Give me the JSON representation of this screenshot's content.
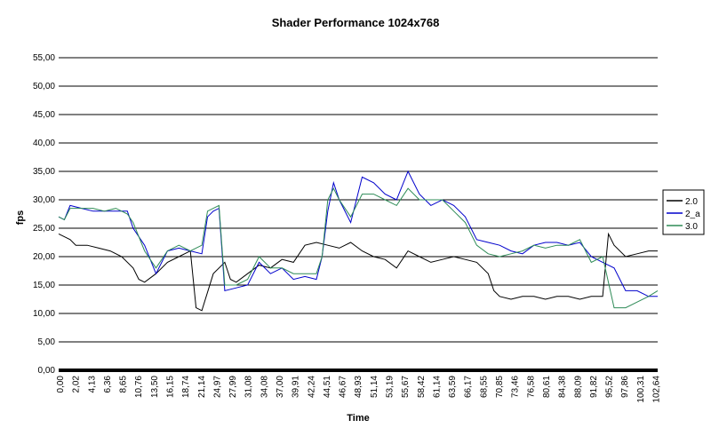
{
  "chart_data": {
    "type": "line",
    "title": "Shader Performance 1024x768",
    "xlabel": "Time",
    "ylabel": "fps",
    "ylim": [
      0,
      55
    ],
    "y_ticks": [
      "0,00",
      "5,00",
      "10,00",
      "15,00",
      "20,00",
      "25,00",
      "30,00",
      "35,00",
      "40,00",
      "45,00",
      "50,00",
      "55,00"
    ],
    "x_range": [
      0,
      104.6
    ],
    "x_tick_labels": [
      "0,00",
      "2,02",
      "4,13",
      "6,36",
      "8,65",
      "10,76",
      "13,50",
      "16,15",
      "18,74",
      "21,14",
      "24,97",
      "27,99",
      "31,08",
      "34,08",
      "37,00",
      "39,91",
      "42,24",
      "44,51",
      "46,67",
      "48,93",
      "51,14",
      "53,19",
      "55,67",
      "58,42",
      "61,14",
      "63,59",
      "66,17",
      "68,55",
      "70,85",
      "73,46",
      "76,58",
      "80,61",
      "84,38",
      "88,09",
      "91,82",
      "95,52",
      "97,86",
      "100,31",
      "102,64"
    ],
    "grid": "horizontal",
    "legend_position": "right",
    "series": [
      {
        "name": "2.0",
        "color": "#000000",
        "x": [
          0,
          1,
          2,
          3,
          5,
          7,
          9,
          11,
          13,
          14,
          15,
          17,
          19,
          21,
          23,
          24,
          25,
          27,
          29,
          30,
          31,
          33,
          35,
          37,
          39,
          41,
          43,
          45,
          47,
          49,
          51,
          53,
          55,
          57,
          59,
          61,
          63,
          65,
          67,
          69,
          71,
          73,
          75,
          76,
          77,
          79,
          81,
          83,
          85,
          87,
          89,
          91,
          93,
          95,
          96,
          97,
          99,
          101,
          103,
          104.6
        ],
        "y": [
          24,
          23.5,
          23,
          22,
          22,
          21.5,
          21,
          20,
          18,
          16,
          15.5,
          17,
          19,
          20,
          21,
          11,
          10.5,
          17,
          19,
          16,
          15.5,
          17,
          18.5,
          18,
          19.5,
          19,
          22,
          22.5,
          22,
          21.5,
          22.5,
          21,
          20,
          19.5,
          18,
          21,
          20,
          19,
          19.5,
          20,
          19.5,
          19,
          17,
          14,
          13,
          12.5,
          13,
          13,
          12.5,
          13,
          13,
          12.5,
          13,
          13,
          24,
          22,
          20,
          20.5,
          21,
          21
        ]
      },
      {
        "name": "2_a",
        "color": "#0000cc",
        "x": [
          0,
          1,
          2,
          4,
          6,
          8,
          10,
          12,
          13,
          15,
          17,
          19,
          21,
          23,
          25,
          26,
          27,
          28,
          29,
          31,
          33,
          35,
          37,
          39,
          41,
          43,
          45,
          46,
          47,
          48,
          49,
          51,
          53,
          55,
          57,
          59,
          61,
          63,
          65,
          67,
          69,
          71,
          73,
          75,
          77,
          79,
          81,
          83,
          85,
          87,
          89,
          91,
          93,
          95,
          97,
          99,
          101,
          103,
          104.6
        ],
        "y": [
          27,
          26.5,
          29,
          28.5,
          28,
          28,
          28,
          28,
          25,
          22,
          17,
          21,
          21.5,
          21,
          20.5,
          27,
          28,
          28.5,
          14,
          14.5,
          15,
          19,
          17,
          18,
          16,
          16.5,
          16,
          20,
          28,
          33,
          30,
          26,
          34,
          33,
          31,
          30,
          35,
          31,
          29,
          30,
          29,
          27,
          23,
          22.5,
          22,
          21,
          20.5,
          22,
          22.5,
          22.5,
          22,
          22.5,
          20,
          19,
          18,
          14,
          14,
          13,
          13
        ]
      },
      {
        "name": "3.0",
        "color": "#2e8b57",
        "x": [
          0,
          1,
          2,
          4,
          6,
          8,
          10,
          12,
          13,
          15,
          17,
          19,
          21,
          23,
          25,
          26,
          27,
          28,
          29,
          31,
          33,
          35,
          37,
          39,
          41,
          43,
          45,
          46,
          47,
          48,
          49,
          51,
          53,
          55,
          57,
          59,
          61,
          63,
          65,
          67,
          69,
          71,
          73,
          75,
          77,
          79,
          81,
          83,
          85,
          87,
          89,
          91,
          93,
          95,
          97,
          99,
          101,
          103,
          104.6
        ],
        "y": [
          27,
          26.5,
          28.5,
          28.5,
          28.5,
          28,
          28.5,
          27.5,
          26,
          21,
          18,
          21,
          22,
          21,
          22,
          28,
          28.5,
          29,
          15,
          15,
          16,
          20,
          18,
          18,
          17,
          17,
          17,
          20,
          30,
          32,
          30,
          27,
          31,
          31,
          30,
          29,
          32,
          30,
          30,
          30,
          28,
          26,
          22,
          20.5,
          20,
          20.5,
          21,
          22,
          21.5,
          22,
          22,
          23,
          19,
          20,
          11,
          11,
          12,
          13,
          14
        ]
      }
    ]
  }
}
